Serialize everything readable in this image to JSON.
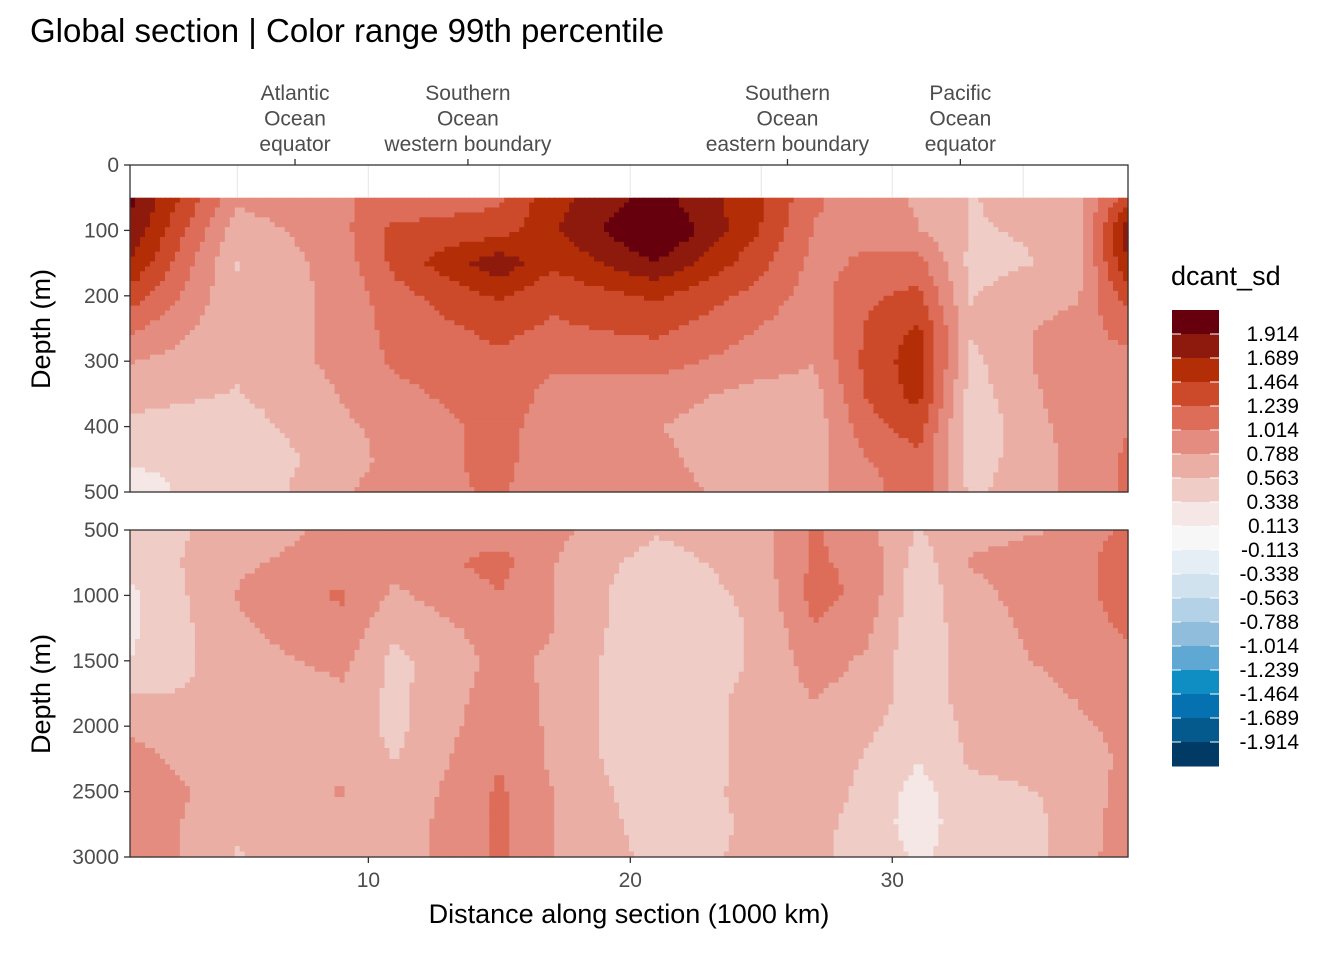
{
  "chart_data": {
    "type": "heatmap",
    "title": "Global section | Color range 99th percentile",
    "xlabel": "Distance along section (1000 km)",
    "ylabel": "Depth (m)",
    "xlim": [
      0.9,
      39
    ],
    "x_ticks": [
      "10",
      "20",
      "30"
    ],
    "x_tick_values": [
      10,
      20,
      30
    ],
    "legend": {
      "title": "dcant_sd",
      "labels": [
        "1.914",
        "1.689",
        "1.464",
        "1.239",
        "1.014",
        "0.788",
        "0.563",
        "0.338",
        "0.113",
        "-0.113",
        "-0.338",
        "-0.563",
        "-0.788",
        "-1.014",
        "-1.239",
        "-1.464",
        "-1.689",
        "-1.914"
      ],
      "colors": [
        "#67000d",
        "#8e1a0d",
        "#b32e06",
        "#cc4a2a",
        "#dd6c59",
        "#e48c7f",
        "#eaaea5",
        "#efccc6",
        "#f4e7e5",
        "#f7f7f7",
        "#e6eef5",
        "#cfe2ee",
        "#b4d2e7",
        "#91bddc",
        "#5fa8d3",
        "#0e8ec2",
        "#0671b0",
        "#045a8d",
        "#023a66"
      ]
    },
    "section_labels": [
      {
        "x": 7.2,
        "lines": [
          "Atlantic",
          "Ocean",
          "equator"
        ]
      },
      {
        "x": 13.8,
        "lines": [
          "Southern",
          "Ocean",
          "western boundary"
        ]
      },
      {
        "x": 26,
        "lines": [
          "Southern",
          "Ocean",
          "eastern boundary"
        ]
      },
      {
        "x": 32.6,
        "lines": [
          "Pacific",
          "Ocean",
          "equator"
        ]
      }
    ],
    "panels": [
      {
        "name": "upper",
        "ylim": [
          0,
          500
        ],
        "y_ticks": [
          "0",
          "100",
          "200",
          "300",
          "400",
          "500"
        ],
        "y_tick_values": [
          0,
          100,
          200,
          300,
          400,
          500
        ],
        "data_top_depth": 50,
        "x": [
          1,
          5,
          9,
          11,
          15,
          17,
          21,
          25,
          27,
          29,
          31,
          33,
          37,
          39
        ],
        "depths": [
          50,
          100,
          150,
          200,
          250,
          300,
          350,
          400,
          450,
          500
        ],
        "values": [
          [
            1.95,
            0.85,
            1.0,
            1.05,
            1.2,
            1.6,
            2.0,
            1.5,
            1.05,
            0.9,
            0.75,
            0.55,
            0.7,
            1.35
          ],
          [
            1.85,
            0.65,
            0.95,
            1.3,
            1.35,
            1.65,
            2.2,
            1.45,
            1.0,
            0.95,
            0.8,
            0.55,
            0.6,
            1.85
          ],
          [
            1.65,
            0.55,
            0.9,
            1.3,
            1.85,
            1.5,
            1.9,
            1.3,
            0.95,
            1.05,
            1.1,
            0.5,
            0.6,
            1.7
          ],
          [
            1.35,
            0.6,
            0.85,
            1.15,
            1.5,
            1.3,
            1.5,
            1.15,
            0.9,
            1.2,
            1.3,
            0.55,
            0.75,
            1.35
          ],
          [
            1.05,
            0.6,
            0.85,
            1.1,
            1.3,
            1.2,
            1.3,
            1.0,
            0.85,
            1.25,
            1.5,
            0.6,
            0.9,
            1.1
          ],
          [
            0.8,
            0.6,
            0.85,
            1.05,
            1.2,
            1.05,
            1.1,
            0.9,
            0.8,
            1.3,
            1.6,
            0.5,
            1.0,
            0.95
          ],
          [
            0.65,
            0.55,
            0.8,
            0.95,
            1.15,
            0.95,
            0.9,
            0.7,
            0.7,
            1.25,
            1.55,
            0.45,
            0.95,
            0.9
          ],
          [
            0.5,
            0.45,
            0.75,
            0.85,
            1.1,
            0.9,
            0.8,
            0.6,
            0.65,
            1.15,
            1.35,
            0.4,
            0.9,
            1.0
          ],
          [
            0.35,
            0.35,
            0.7,
            0.85,
            1.1,
            0.85,
            0.85,
            0.6,
            0.7,
            1.0,
            1.2,
            0.45,
            0.85,
            1.05
          ],
          [
            0.3,
            0.4,
            0.75,
            0.9,
            1.05,
            0.85,
            0.9,
            0.65,
            0.75,
            0.9,
            1.2,
            0.5,
            0.85,
            1.05
          ]
        ]
      },
      {
        "name": "lower",
        "ylim": [
          500,
          3000
        ],
        "y_ticks": [
          "500",
          "1000",
          "1500",
          "2000",
          "2500",
          "3000"
        ],
        "y_tick_values": [
          500,
          1000,
          1500,
          2000,
          2500,
          3000
        ],
        "x": [
          1,
          5,
          9,
          11,
          15,
          17,
          21,
          25,
          27,
          29,
          31,
          33,
          37,
          39
        ],
        "depths": [
          500,
          750,
          1000,
          1250,
          1500,
          1750,
          2000,
          2250,
          2500,
          2750,
          3000
        ],
        "values": [
          [
            0.45,
            0.65,
            0.85,
            0.95,
            0.9,
            0.85,
            0.6,
            0.7,
            1.05,
            0.85,
            0.55,
            0.75,
            0.8,
            1.1
          ],
          [
            0.4,
            0.75,
            0.9,
            0.85,
            1.1,
            0.8,
            0.45,
            0.7,
            1.05,
            0.95,
            0.45,
            0.8,
            0.85,
            1.25
          ],
          [
            0.3,
            0.8,
            1.05,
            0.75,
            1.0,
            0.8,
            0.35,
            0.65,
            1.1,
            0.95,
            0.4,
            0.75,
            0.9,
            1.15
          ],
          [
            0.3,
            0.75,
            0.95,
            0.6,
            0.9,
            0.8,
            0.35,
            0.6,
            1.0,
            0.85,
            0.4,
            0.7,
            0.9,
            1.05
          ],
          [
            0.35,
            0.7,
            0.85,
            0.5,
            0.85,
            0.75,
            0.35,
            0.6,
            0.9,
            0.75,
            0.4,
            0.7,
            0.85,
            0.95
          ],
          [
            0.55,
            0.6,
            0.75,
            0.5,
            0.9,
            0.75,
            0.35,
            0.65,
            0.8,
            0.7,
            0.45,
            0.65,
            0.8,
            0.9
          ],
          [
            0.75,
            0.6,
            0.7,
            0.5,
            0.95,
            0.75,
            0.35,
            0.65,
            0.75,
            0.6,
            0.45,
            0.6,
            0.75,
            0.85
          ],
          [
            0.85,
            0.65,
            0.75,
            0.55,
            1.0,
            0.75,
            0.35,
            0.65,
            0.7,
            0.55,
            0.35,
            0.6,
            0.65,
            0.85
          ],
          [
            0.9,
            0.7,
            0.8,
            0.6,
            1.05,
            0.8,
            0.4,
            0.65,
            0.7,
            0.5,
            0.25,
            0.5,
            0.6,
            0.9
          ],
          [
            0.95,
            0.6,
            0.75,
            0.65,
            1.05,
            0.8,
            0.45,
            0.6,
            0.65,
            0.45,
            0.25,
            0.45,
            0.6,
            0.95
          ],
          [
            1.0,
            0.55,
            0.7,
            0.65,
            1.05,
            0.8,
            0.5,
            0.6,
            0.6,
            0.5,
            0.3,
            0.45,
            0.6,
            1.0
          ]
        ]
      }
    ]
  }
}
